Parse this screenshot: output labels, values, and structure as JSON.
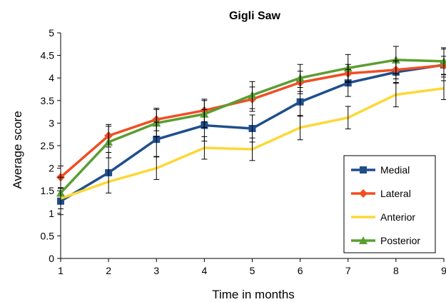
{
  "chart_data": {
    "type": "line",
    "title": "Gigli Saw",
    "xlabel": "Time in months",
    "ylabel": "Average score",
    "x": [
      1,
      2,
      3,
      4,
      5,
      6,
      7,
      8,
      9
    ],
    "xlim": [
      1,
      9
    ],
    "ylim": [
      0,
      5
    ],
    "y_ticks": [
      "0",
      "0.5",
      "1",
      "1.5",
      "2",
      "2.5",
      "3",
      "3.5",
      "4",
      "4.5",
      "5"
    ],
    "x_ticks": [
      "1",
      "2",
      "3",
      "4",
      "5",
      "6",
      "7",
      "8",
      "9"
    ],
    "grid": false,
    "legend_position": "bottom-right",
    "series": [
      {
        "name": "Medial",
        "color": "#1f4e8c",
        "marker": "square",
        "values": [
          1.27,
          1.9,
          2.64,
          2.95,
          2.88,
          3.47,
          3.89,
          4.13,
          4.29
        ],
        "error": [
          0.3,
          0.45,
          0.38,
          0.35,
          0.3,
          0.32,
          0.3,
          0.25,
          0.35
        ]
      },
      {
        "name": "Lateral",
        "color": "#f04e23",
        "marker": "diamond",
        "values": [
          1.8,
          2.72,
          3.08,
          3.28,
          3.53,
          3.9,
          4.1,
          4.18,
          4.28
        ],
        "error": [
          0.25,
          0.25,
          0.25,
          0.25,
          0.27,
          0.25,
          0.2,
          0.2,
          0.2
        ]
      },
      {
        "name": "Anterior",
        "color": "#fdd835",
        "marker": "none",
        "values": [
          1.33,
          1.7,
          2.0,
          2.45,
          2.42,
          2.9,
          3.12,
          3.63,
          3.77
        ],
        "error": [
          0.0,
          0.0,
          0.25,
          0.25,
          0.25,
          0.27,
          0.25,
          0.27,
          0.25
        ]
      },
      {
        "name": "Posterior",
        "color": "#5a9e32",
        "marker": "triangle",
        "values": [
          1.45,
          2.58,
          3.0,
          3.2,
          3.62,
          4.0,
          4.22,
          4.4,
          4.37
        ],
        "error": [
          0.35,
          0.35,
          0.3,
          0.3,
          0.3,
          0.3,
          0.3,
          0.3,
          0.3
        ]
      }
    ]
  }
}
